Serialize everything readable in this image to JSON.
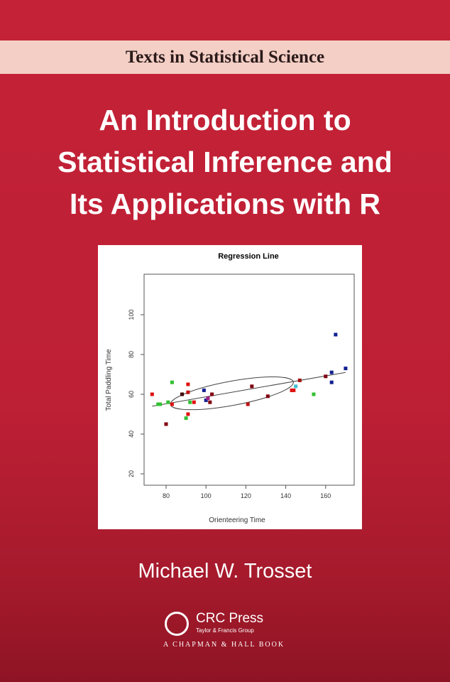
{
  "series_label": "Texts in Statistical Science",
  "title_lines": [
    "An Introduction to",
    "Statistical Inference and",
    "Its Applications with R"
  ],
  "author": "Michael W. Trosset",
  "publisher": {
    "logo_text": "CRC",
    "name": "CRC Press",
    "group": "Taylor & Francis Group",
    "imprint": "A CHAPMAN & HALL BOOK"
  },
  "colors": {
    "background": "#c42236",
    "band": "#f4cfc5"
  },
  "chart_data": {
    "type": "scatter",
    "title": "Regression Line",
    "xlabel": "Orienteering Time",
    "ylabel": "Total Paddling Time",
    "xlim": [
      70,
      172
    ],
    "ylim": [
      16,
      120
    ],
    "xticks": [
      80,
      100,
      120,
      140,
      160
    ],
    "yticks": [
      20,
      40,
      60,
      80,
      100
    ],
    "grid": false,
    "regression_line": [
      [
        73,
        54
      ],
      [
        170,
        71
      ]
    ],
    "points": [
      {
        "x": 73,
        "y": 60,
        "color": "#e01010"
      },
      {
        "x": 83,
        "y": 66,
        "color": "#30c030"
      },
      {
        "x": 91,
        "y": 65,
        "color": "#e01010"
      },
      {
        "x": 91,
        "y": 61,
        "color": "#c01010"
      },
      {
        "x": 88,
        "y": 60,
        "color": "#400000"
      },
      {
        "x": 76,
        "y": 55,
        "color": "#30c030"
      },
      {
        "x": 77,
        "y": 55,
        "color": "#30c030"
      },
      {
        "x": 81,
        "y": 56,
        "color": "#30c030"
      },
      {
        "x": 83,
        "y": 55,
        "color": "#e01010"
      },
      {
        "x": 80,
        "y": 45,
        "color": "#800010"
      },
      {
        "x": 91,
        "y": 50,
        "color": "#e01010"
      },
      {
        "x": 90,
        "y": 48,
        "color": "#30c030"
      },
      {
        "x": 92,
        "y": 56,
        "color": "#30c030"
      },
      {
        "x": 94,
        "y": 56,
        "color": "#e01010"
      },
      {
        "x": 99,
        "y": 62,
        "color": "#102090"
      },
      {
        "x": 100,
        "y": 57,
        "color": "#102090"
      },
      {
        "x": 101,
        "y": 58,
        "color": "#a02080"
      },
      {
        "x": 102,
        "y": 56,
        "color": "#800010"
      },
      {
        "x": 103,
        "y": 60,
        "color": "#800010"
      },
      {
        "x": 121,
        "y": 55,
        "color": "#c01010"
      },
      {
        "x": 123,
        "y": 64,
        "color": "#800010"
      },
      {
        "x": 131,
        "y": 59,
        "color": "#800010"
      },
      {
        "x": 143,
        "y": 62,
        "color": "#e01010"
      },
      {
        "x": 144,
        "y": 62,
        "color": "#e01010"
      },
      {
        "x": 145,
        "y": 64,
        "color": "#40c0d0"
      },
      {
        "x": 147,
        "y": 67,
        "color": "#a01010"
      },
      {
        "x": 154,
        "y": 60,
        "color": "#30c030"
      },
      {
        "x": 160,
        "y": 69,
        "color": "#800010"
      },
      {
        "x": 163,
        "y": 71,
        "color": "#102090"
      },
      {
        "x": 163,
        "y": 66,
        "color": "#102090"
      },
      {
        "x": 165,
        "y": 90,
        "color": "#102090"
      },
      {
        "x": 170,
        "y": 73,
        "color": "#102090"
      }
    ]
  }
}
